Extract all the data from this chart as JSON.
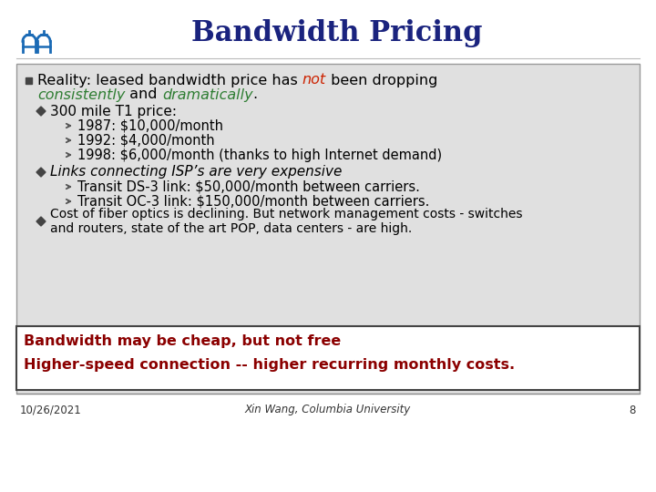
{
  "title": "Bandwidth Pricing",
  "title_color": "#1a237e",
  "slide_bg": "#ffffff",
  "content_box_bg": "#e0e0e0",
  "content_box_border": "#999999",
  "not_color": "#cc2200",
  "green_color": "#2e7d32",
  "text_color": "#000000",
  "footer_color": "#8b0000",
  "footer_box_border": "#444444",
  "sub_bullet1_header": "300 mile T1 price:",
  "sub_bullet1_items": [
    "1987: $10,000/month",
    "1992: $4,000/month",
    "1998: $6,000/month (thanks to high Internet demand)"
  ],
  "sub_bullet2_header": "Links connecting ISP’s are very expensive",
  "sub_bullet2_items": [
    "Transit DS-3 link: $50,000/month between carriers.",
    "Transit OC-3 link: $150,000/month between carriers."
  ],
  "sub_bullet3_text1": "Cost of fiber optics is declining. But network management costs - switches",
  "sub_bullet3_text2": "and routers, state of the art POP, data centers - are high.",
  "footer_line1": "Bandwidth may be cheap, but not free",
  "footer_line2": "Higher-speed connection -- higher recurring monthly costs.",
  "date_text": "10/26/2021",
  "author_text": "Xin Wang, Columbia University",
  "page_num": "8",
  "logo_color": "#1a6ab5"
}
